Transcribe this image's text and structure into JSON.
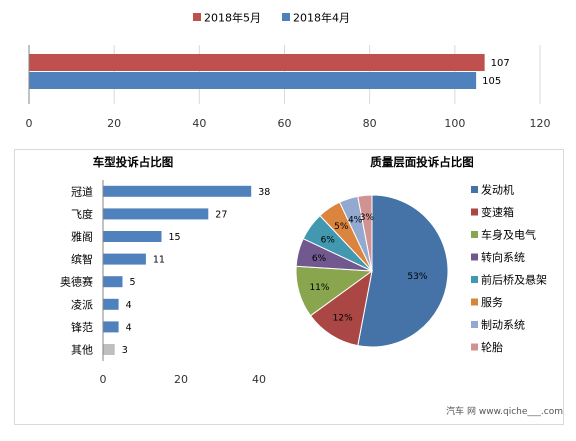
{
  "chart_data": [
    {
      "type": "bar",
      "orientation": "horizontal",
      "legend_position": "top",
      "categories": [
        ""
      ],
      "series": [
        {
          "name": "2018年5月",
          "values": [
            107
          ],
          "color": "#c0504d"
        },
        {
          "name": "2018年4月",
          "values": [
            105
          ],
          "color": "#4f81bd"
        }
      ],
      "xlim": [
        0,
        120
      ],
      "xticks": [
        0,
        20,
        40,
        60,
        80,
        100,
        120
      ],
      "grid": true
    },
    {
      "type": "bar",
      "orientation": "horizontal",
      "title": "车型投诉占比图",
      "categories": [
        "冠道",
        "飞度",
        "雅阁",
        "缤智",
        "奥德赛",
        "凌派",
        "锋范",
        "其他"
      ],
      "values": [
        38,
        27,
        15,
        11,
        5,
        4,
        4,
        3
      ],
      "colors": [
        "#4f81bd",
        "#4f81bd",
        "#4f81bd",
        "#4f81bd",
        "#4f81bd",
        "#4f81bd",
        "#4f81bd",
        "#bfbfbf"
      ],
      "xlim": [
        0,
        40
      ],
      "xticks": [
        0,
        20,
        40
      ],
      "grid": false
    },
    {
      "type": "pie",
      "title": "质量层面投诉占比图",
      "legend_position": "right",
      "slices": [
        {
          "label": "发动机",
          "value": 53,
          "display": "53%",
          "color": "#4572a7"
        },
        {
          "label": "变速箱",
          "value": 12,
          "display": "12%",
          "color": "#aa4643"
        },
        {
          "label": "车身及电气",
          "value": 11,
          "display": "11%",
          "color": "#89a54e"
        },
        {
          "label": "转向系统",
          "value": 6,
          "display": "6%",
          "color": "#71588f"
        },
        {
          "label": "前后桥及悬架",
          "value": 6,
          "display": "6%",
          "color": "#4198af"
        },
        {
          "label": "服务",
          "value": 5,
          "display": "5%",
          "color": "#db843d"
        },
        {
          "label": "制动系统",
          "value": 4,
          "display": "4%",
          "color": "#93a9cf"
        },
        {
          "label": "轮胎",
          "value": 3,
          "display": "3%",
          "color": "#d19392"
        }
      ]
    }
  ],
  "watermark": "汽车 网 www.qiche___.com"
}
